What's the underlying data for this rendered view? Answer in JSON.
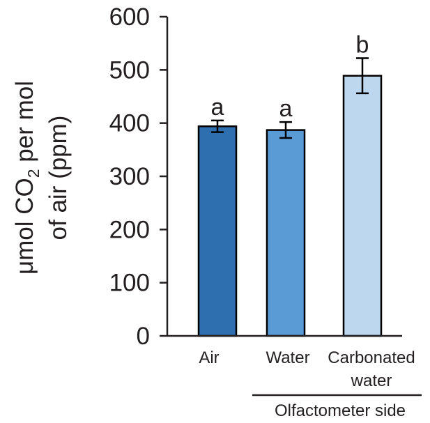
{
  "chart_data": {
    "type": "bar",
    "categories": [
      {
        "line1": "Air",
        "line2": ""
      },
      {
        "line1": "Water",
        "line2": ""
      },
      {
        "line1": "Carbonated",
        "line2": "water"
      }
    ],
    "values": [
      394,
      387,
      489
    ],
    "errors": [
      11,
      15,
      33
    ],
    "significance": [
      "a",
      "a",
      "b"
    ],
    "bar_colors": [
      "#2e6fb0",
      "#5b9bd5",
      "#bdd7ee"
    ],
    "ylabel": {
      "line1_pre": "μmol CO",
      "line1_sub": "2",
      "line1_post": " per mol",
      "line2": "of air (ppm)"
    },
    "group_label": "Olfactometer side",
    "ylim": [
      0,
      600
    ],
    "yticks": [
      0,
      100,
      200,
      300,
      400,
      500,
      600
    ],
    "grid": false,
    "legend": "none"
  }
}
